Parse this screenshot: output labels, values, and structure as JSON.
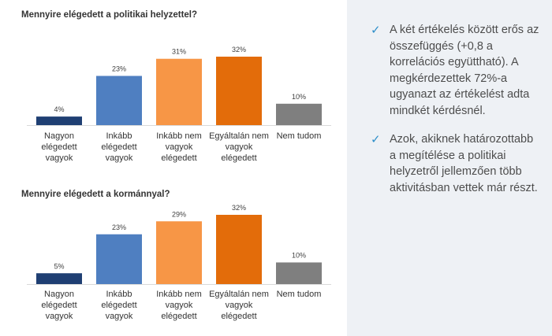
{
  "chart_data": [
    {
      "type": "bar",
      "title": "Mennyire elégedett a politikai helyzettel?",
      "categories": [
        [
          "Nagyon",
          "elégedett",
          "vagyok"
        ],
        [
          "Inkább",
          "elégedett",
          "vagyok"
        ],
        [
          "Inkább nem",
          "vagyok",
          "elégedett"
        ],
        [
          "Egyáltalán nem",
          "vagyok",
          "elégedett"
        ],
        [
          "Nem tudom"
        ]
      ],
      "values": [
        4,
        23,
        31,
        32,
        10
      ],
      "data_labels": [
        "4%",
        "23%",
        "31%",
        "32%",
        "10%"
      ],
      "colors": [
        "#1f3f73",
        "#4f7fc1",
        "#f79646",
        "#e36c0a",
        "#7f7f7f"
      ],
      "ylim": [
        0,
        32
      ]
    },
    {
      "type": "bar",
      "title": "Mennyire elégedett a kormánnyal?",
      "categories": [
        [
          "Nagyon",
          "elégedett",
          "vagyok"
        ],
        [
          "Inkább",
          "elégedett",
          "vagyok"
        ],
        [
          "Inkább nem",
          "vagyok",
          "elégedett"
        ],
        [
          "Egyáltalán nem",
          "vagyok",
          "elégedett"
        ],
        [
          "Nem tudom"
        ]
      ],
      "values": [
        5,
        23,
        29,
        32,
        10
      ],
      "data_labels": [
        "5%",
        "23%",
        "29%",
        "32%",
        "10%"
      ],
      "colors": [
        "#1f3f73",
        "#4f7fc1",
        "#f79646",
        "#e36c0a",
        "#7f7f7f"
      ],
      "ylim": [
        0,
        32
      ]
    }
  ],
  "bullets": [
    {
      "icon": "check-icon",
      "text": "A két értékelés között erős az összefüggés (+0,8 a korrelációs együttható). A megkérdezettek 72%-a ugyanazt az értékelést adta mindkét kérdésnél."
    },
    {
      "icon": "check-icon",
      "text": "Azok, akiknek határozottabb a megítélése a politikai helyzetről jellemzően több aktivitásban vettek már részt."
    }
  ],
  "colors": {
    "right_panel_bg": "#eef1f5",
    "check": "#2e8fc9",
    "bullet_text": "#4d4d4d"
  }
}
